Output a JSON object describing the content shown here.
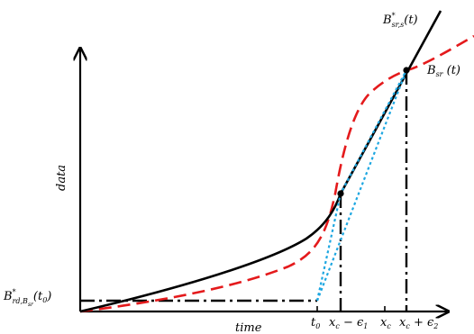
{
  "axes": {
    "y_label": "data",
    "x_label": "time"
  },
  "annotations": {
    "star_s": {
      "base": "B",
      "sup": "*",
      "sub": "sr,s",
      "tail": "(t)"
    },
    "bsr": {
      "base": "B",
      "sub": "sr",
      "tail": " (t)"
    },
    "brd": {
      "base": "B",
      "sup": "*",
      "sub": "rd,B",
      "subsub": "sr",
      "tail": "(t",
      "tail_sub": "0",
      "tail_end": ")"
    }
  },
  "ticks": {
    "t0": {
      "base": "t",
      "sub": "0"
    },
    "xc_minus": {
      "a": "x",
      "a_sub": "c",
      "mid": " − ϵ",
      "b_sub": "1"
    },
    "xc": {
      "a": "x",
      "a_sub": "c"
    },
    "xc_plus": {
      "a": "x",
      "a_sub": "c",
      "mid": " + ϵ",
      "b_sub": "2"
    }
  },
  "colors": {
    "black_curve": "#000000",
    "red_curve": "#e41a1c",
    "blue_curve": "#1ea7e1"
  }
}
